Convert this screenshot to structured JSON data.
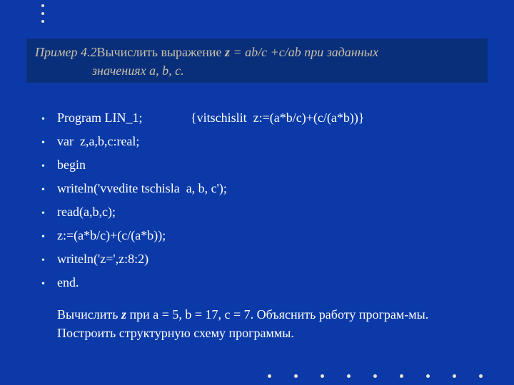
{
  "colors": {
    "slide_bg": "#0b3aa8",
    "title_bg": "#0a2f7a",
    "title_text": "#c8c0a8",
    "body_text": "#ffffff",
    "dot": "#e8e4d0"
  },
  "title": {
    "label": "Пример 4.2",
    "part_a": "Вычислить выражение  ",
    "z": "z",
    "part_b": " = ab/c +c/ab  при заданных",
    "line2_a": "значениях   ",
    "line2_vars": "a, b, c."
  },
  "code": {
    "items": [
      "Program LIN_1;               {vitschislit  z:=(a*b/c)+(c/(a*b))}",
      "var  z,a,b,c:real;",
      "begin",
      "writeln('vvedite tschisla  a, b, c');",
      "read(a,b,c);",
      "z:=(a*b/c)+(c/(a*b));",
      "writeln('z=',z:8:2)",
      "end."
    ]
  },
  "note": {
    "pre": "Вычислить  ",
    "z": "z",
    "post": "  при  а = 5, b = 17, c = 7. Объяснить работу програм-мы. Построить структурную схему программы."
  },
  "decor": {
    "top_dot_count": 3,
    "bottom_dot_count": 9
  }
}
